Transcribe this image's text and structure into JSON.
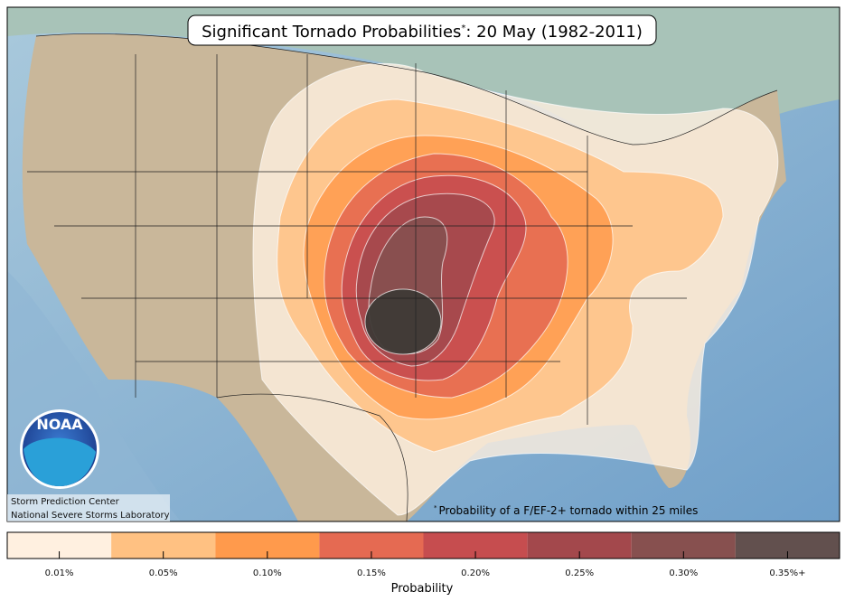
{
  "header": {
    "title_main": "Significant Tornado Probabilities",
    "title_mark": "*",
    "title_rest": ": 20 May (1982-2011)"
  },
  "credits": [
    "Storm Prediction Center",
    "National Severe Storms Laboratory"
  ],
  "logo": "NOAA",
  "footnote": {
    "mark": "*",
    "text": "Probability of a F/EF-2+ tornado within 25 miles"
  },
  "legend": {
    "title": "Probability",
    "items": [
      {
        "label": "0.01%",
        "color": "#fff0e0"
      },
      {
        "label": "0.05%",
        "color": "#ffc182"
      },
      {
        "label": "0.10%",
        "color": "#ff9a4c"
      },
      {
        "label": "0.15%",
        "color": "#e56a52"
      },
      {
        "label": "0.20%",
        "color": "#c64d4f"
      },
      {
        "label": "0.25%",
        "color": "#a3484c"
      },
      {
        "label": "0.30%",
        "color": "#87504f"
      },
      {
        "label": "0.35%+",
        "color": "#62504e"
      }
    ]
  }
}
